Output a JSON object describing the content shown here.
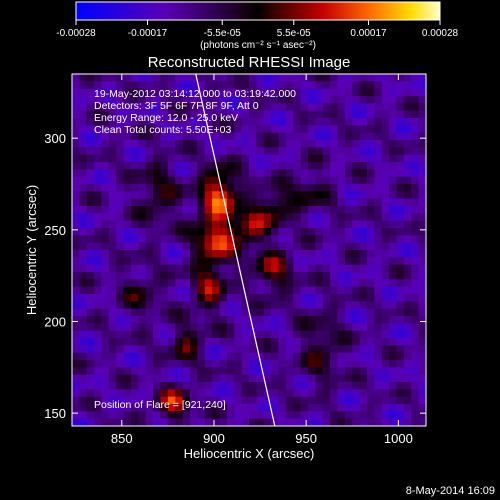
{
  "chart_data": {
    "type": "heatmap",
    "title": "Reconstructed RHESSI Image",
    "xlabel": "Heliocentric X (arcsec)",
    "ylabel": "Heliocentric Y (arcsec)",
    "xlim": [
      823,
      1015
    ],
    "ylim": [
      143,
      335
    ],
    "x_ticks": [
      "850",
      "900",
      "950",
      "1000"
    ],
    "x_tick_values": [
      850,
      900,
      950,
      1000
    ],
    "y_ticks": [
      "150",
      "200",
      "250",
      "300"
    ],
    "y_tick_values": [
      150,
      200,
      250,
      300
    ],
    "colorbar": {
      "ticks": [
        "-0.00028",
        "-0.00017",
        "-5.5e-05",
        "5.5e-05",
        "0.00017",
        "0.00028"
      ],
      "tick_values": [
        -0.00028,
        -0.00017,
        -5.5e-05,
        5.5e-05,
        0.00017,
        0.00028
      ],
      "range": [
        -0.00028,
        0.00028
      ],
      "units_label": "(photons cm⁻² s⁻¹ asec⁻²)"
    },
    "info_lines": [
      "19-May-2012 03:14:12.000 to 03:19:42.000",
      "Detectors: 3F 5F 6F 7F 8F 9F, Att 0",
      "Energy Range: 12.0 - 25.0 keV",
      "Clean     Total counts: 5.50E+03"
    ],
    "position_of_flare": "Position of Flare = [921,240]",
    "limb_line": [
      [
        889,
        340
      ],
      [
        933,
        143
      ]
    ],
    "sources": [
      {
        "x": 903,
        "y": 270,
        "sx": 7,
        "sy": 9,
        "amp": 0.00026
      },
      {
        "x": 901,
        "y": 245,
        "sx": 8,
        "sy": 10,
        "amp": 0.00024
      },
      {
        "x": 920,
        "y": 252,
        "sx": 6,
        "sy": 7,
        "amp": 0.00018
      },
      {
        "x": 932,
        "y": 262,
        "sx": 6,
        "sy": 6,
        "amp": 0.00015
      },
      {
        "x": 897,
        "y": 218,
        "sx": 6,
        "sy": 9,
        "amp": 0.00017
      },
      {
        "x": 932,
        "y": 228,
        "sx": 7,
        "sy": 9,
        "amp": 0.00016
      },
      {
        "x": 885,
        "y": 188,
        "sx": 6,
        "sy": 7,
        "amp": 0.00014
      },
      {
        "x": 878,
        "y": 155,
        "sx": 6,
        "sy": 6,
        "amp": 0.00022
      },
      {
        "x": 870,
        "y": 270,
        "sx": 8,
        "sy": 12,
        "amp": 0.00011
      },
      {
        "x": 958,
        "y": 185,
        "sx": 8,
        "sy": 14,
        "amp": 0.0001
      },
      {
        "x": 950,
        "y": 270,
        "sx": 9,
        "sy": 9,
        "amp": 9e-05
      },
      {
        "x": 860,
        "y": 215,
        "sx": 8,
        "sy": 9,
        "amp": 9e-05
      }
    ]
  },
  "timestamp": "8-May-2014 16:09"
}
